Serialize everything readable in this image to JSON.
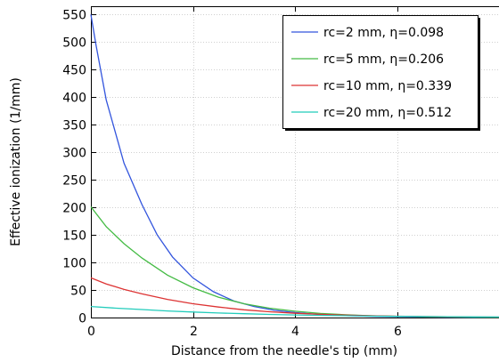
{
  "chart_data": {
    "type": "line",
    "xlabel": "Distance from the needle's tip (mm)",
    "ylabel": "Effective ionization (1/mm)",
    "xlim": [
      0,
      8
    ],
    "ylim": [
      0,
      565
    ],
    "xticks": [
      0,
      2,
      4,
      6
    ],
    "yticks": [
      0,
      50,
      100,
      150,
      200,
      250,
      300,
      350,
      400,
      450,
      500,
      550
    ],
    "grid": true,
    "legend_position": "top-right",
    "series": [
      {
        "name": "rc=2 mm, η=0.098",
        "color": "#3355dd",
        "x": [
          0,
          0.1,
          0.3,
          0.65,
          1.0,
          1.3,
          1.6,
          2.0,
          2.4,
          2.8,
          3.2,
          3.6,
          4.0,
          4.5,
          5.0,
          5.5,
          6.0,
          6.5,
          7.0,
          7.5,
          8.0
        ],
        "y": [
          550,
          495,
          395,
          280,
          205,
          150,
          110,
          72,
          47,
          30,
          20,
          13,
          9,
          5.5,
          3.5,
          2.2,
          1.4,
          0.9,
          0.6,
          0.4,
          0.3
        ]
      },
      {
        "name": "rc=5 mm, η=0.206",
        "color": "#44bb44",
        "x": [
          0,
          0.3,
          0.65,
          1.0,
          1.5,
          2.0,
          2.5,
          3.0,
          3.5,
          4.0,
          4.5,
          5.0,
          5.5,
          6.0,
          6.5,
          7.0,
          7.5,
          8.0
        ],
        "y": [
          201,
          165,
          134,
          108,
          77,
          54,
          37,
          25,
          17,
          11.5,
          7.5,
          5,
          3.3,
          2.2,
          1.5,
          1,
          0.7,
          0.5
        ]
      },
      {
        "name": "rc=10 mm, η=0.339",
        "color": "#dd3333",
        "x": [
          0,
          0.3,
          0.65,
          1.0,
          1.5,
          2.0,
          2.5,
          3.0,
          3.5,
          4.0,
          4.5,
          5.0,
          5.5,
          6.0,
          6.5,
          7.0,
          7.5,
          8.0
        ],
        "y": [
          72,
          61,
          51,
          43,
          33,
          25,
          19,
          14,
          10.5,
          7.8,
          5.8,
          4.3,
          3.2,
          2.4,
          1.8,
          1.3,
          1,
          0.8
        ]
      },
      {
        "name": "rc=20 mm, η=0.512",
        "color": "#22ccbb",
        "x": [
          0,
          0.5,
          1.0,
          1.5,
          2.0,
          2.5,
          3.0,
          3.5,
          4.0,
          4.5,
          5.0,
          5.5,
          6.0,
          6.5,
          7.0,
          7.5,
          8.0
        ],
        "y": [
          20,
          17,
          14.5,
          12,
          10,
          8.3,
          6.9,
          5.7,
          4.7,
          3.9,
          3.2,
          2.6,
          2.1,
          1.7,
          1.4,
          1.1,
          0.9
        ]
      }
    ]
  }
}
